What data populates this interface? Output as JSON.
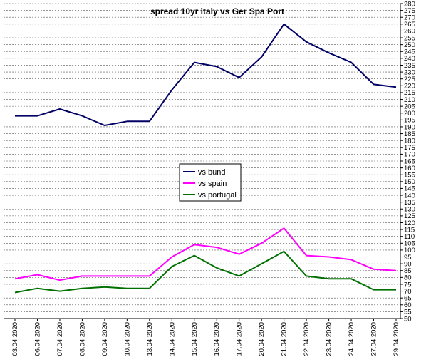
{
  "chart_data": {
    "type": "line",
    "title": "spread 10yr italy vs Ger Spa Port",
    "xlabel": "",
    "ylabel": "",
    "categories": [
      "03.04.2020",
      "06.04.2020",
      "07.04.2020",
      "08.04.2020",
      "09.04.2020",
      "10.04.2020",
      "13.04.2020",
      "14.04.2020",
      "15.04.2020",
      "16.04.2020",
      "17.04.2020",
      "20.04.2020",
      "21.04.2020",
      "22.04.2020",
      "23.04.2020",
      "24.04.2020",
      "27.04.2020",
      "29.04.2020"
    ],
    "ylim": [
      50,
      280
    ],
    "ystep": 5,
    "grid": true,
    "legend_position": "center",
    "series": [
      {
        "name": "vs bund",
        "color": "#000066",
        "values": [
          198,
          198,
          203,
          198,
          191,
          194,
          194,
          217,
          237,
          234,
          226,
          241,
          265,
          252,
          244,
          237,
          221,
          219
        ]
      },
      {
        "name": "vs spain",
        "color": "#ff00ff",
        "values": [
          79,
          82,
          78,
          81,
          81,
          81,
          81,
          95,
          104,
          102,
          97,
          105,
          116,
          96,
          95,
          93,
          86,
          85
        ]
      },
      {
        "name": "vs portugal",
        "color": "#007000",
        "values": [
          69,
          72,
          70,
          72,
          73,
          72,
          72,
          88,
          96,
          87,
          81,
          90,
          99,
          81,
          79,
          79,
          71,
          71
        ]
      }
    ]
  }
}
